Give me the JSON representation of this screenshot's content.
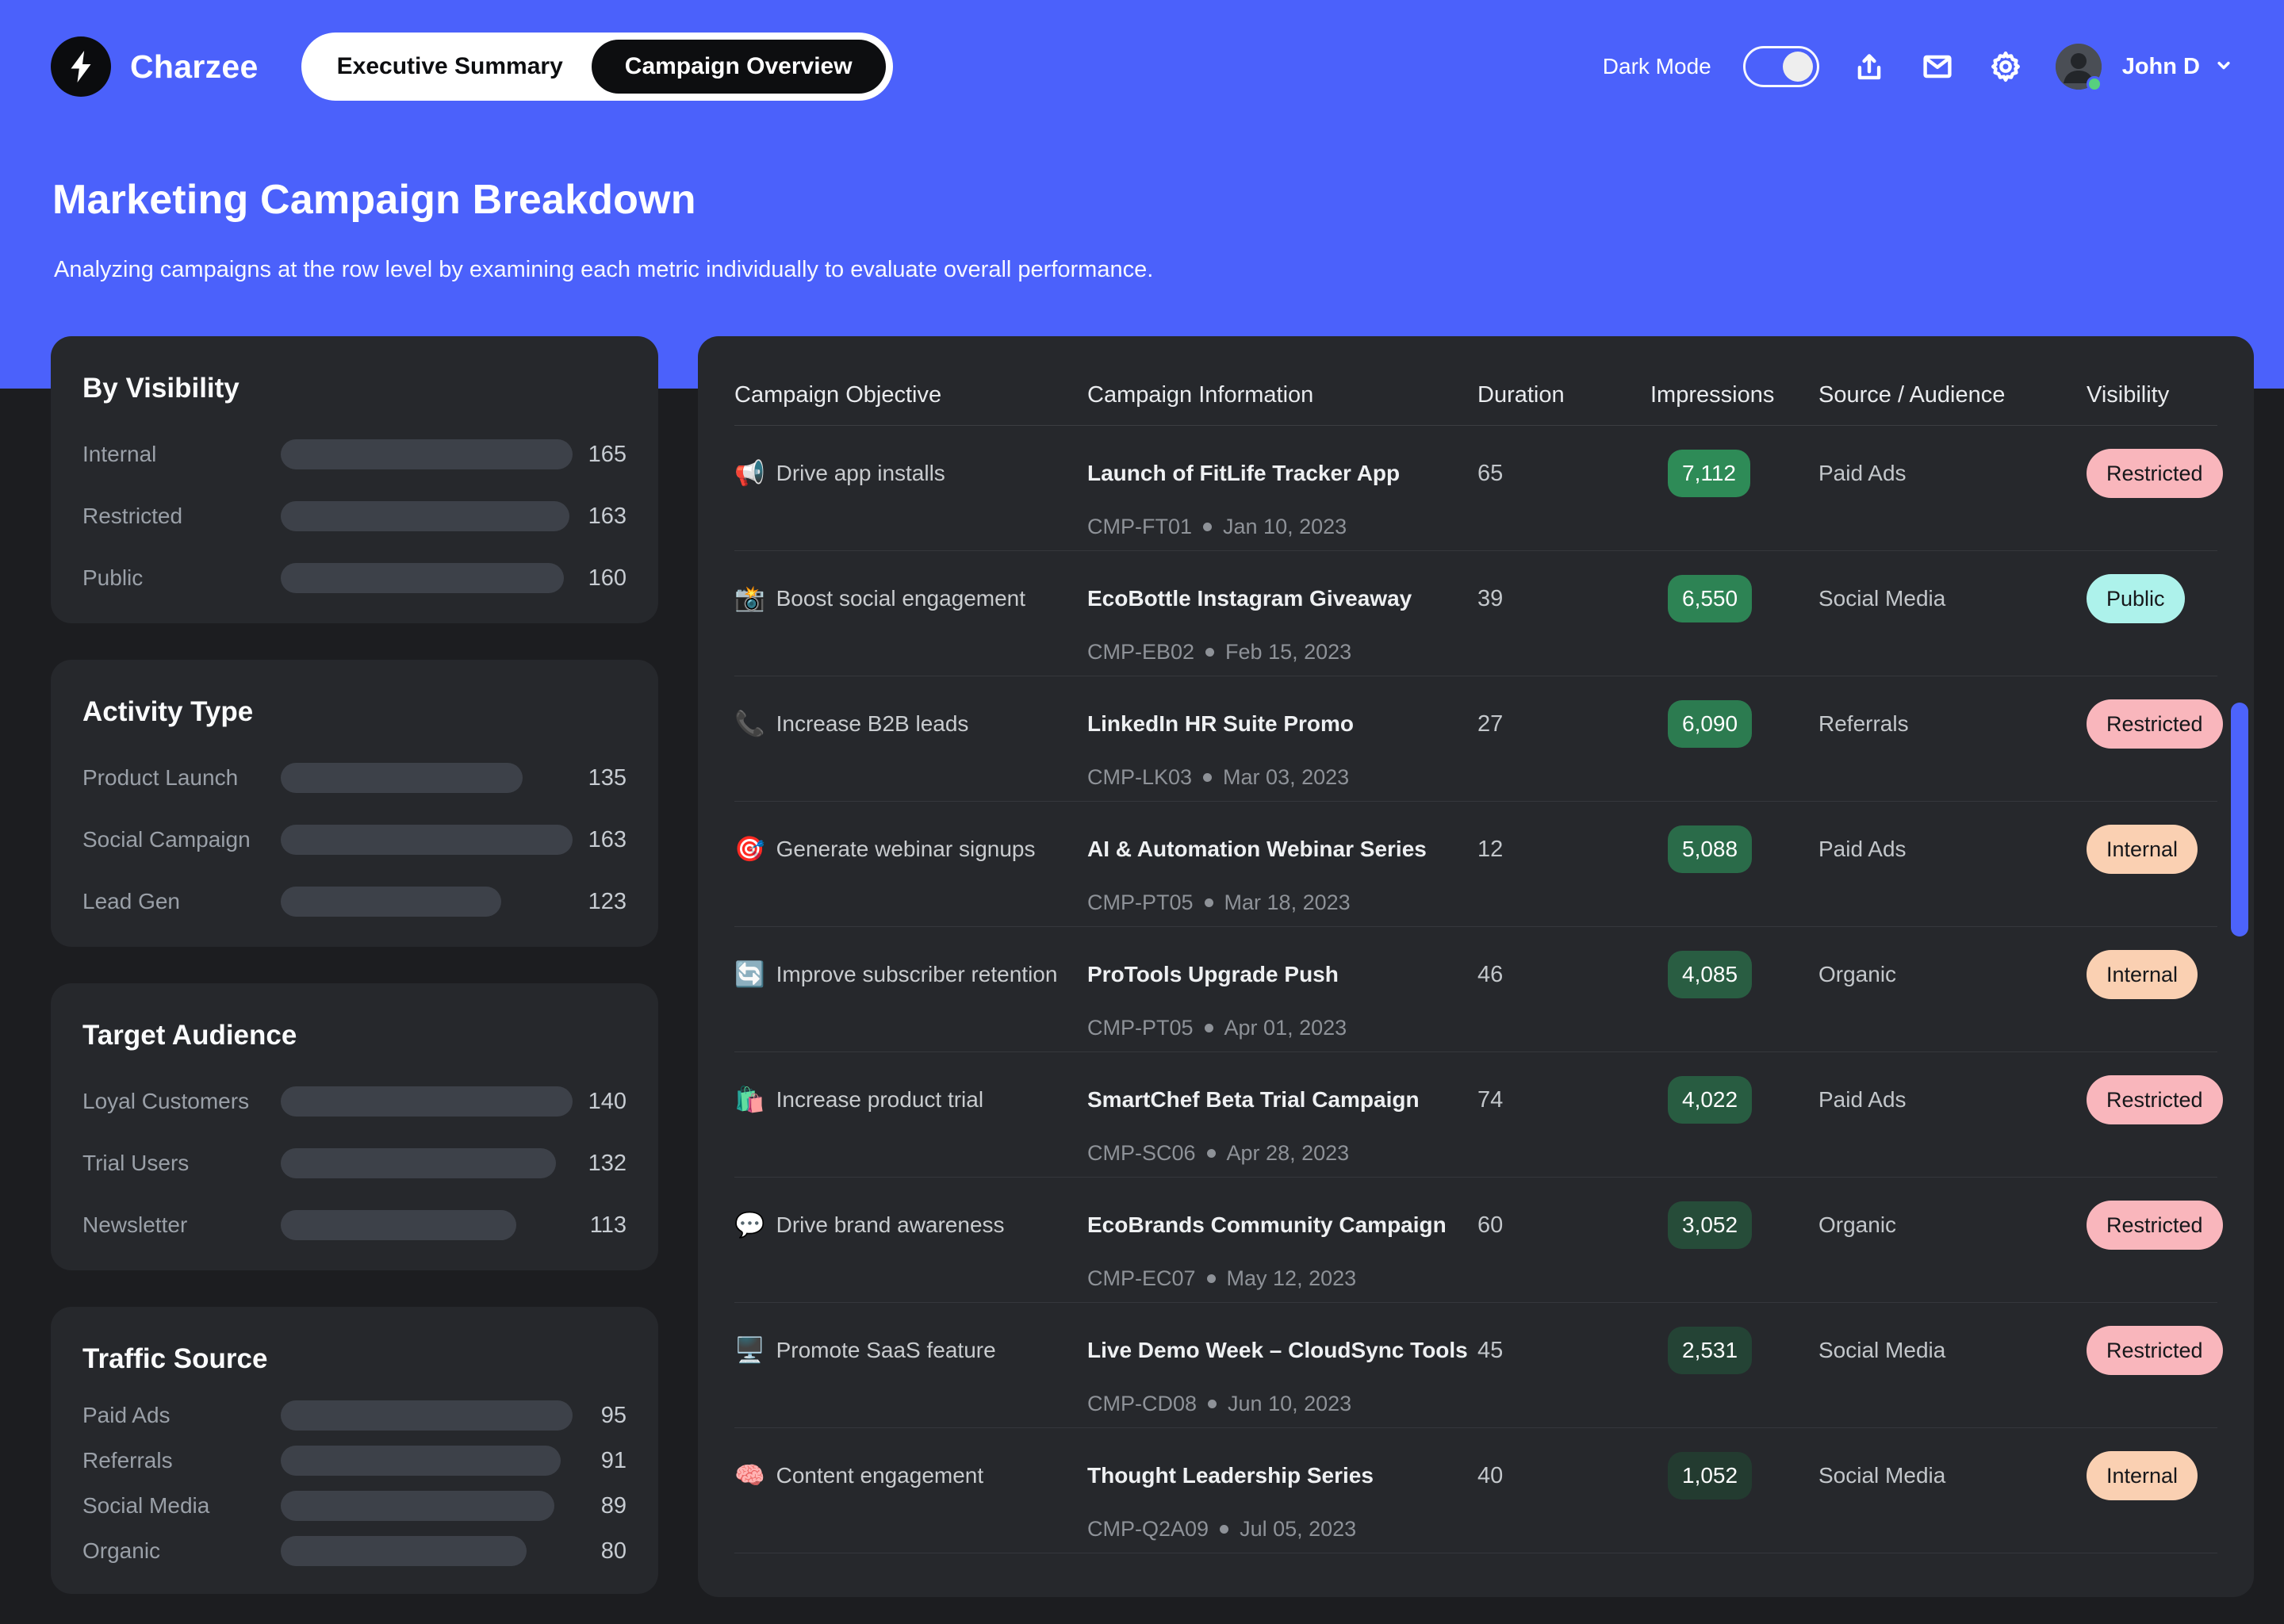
{
  "header": {
    "brand": "Charzee",
    "tabs": [
      {
        "label": "Executive Summary",
        "active": false
      },
      {
        "label": "Campaign Overview",
        "active": true
      }
    ],
    "dark_mode": {
      "label": "Dark Mode",
      "on": true
    },
    "user": {
      "name": "John D",
      "status": "online"
    }
  },
  "hero": {
    "title": "Marketing Campaign Breakdown",
    "subtitle": "Analyzing campaigns at the row level by examining each metric individually to evaluate overall performance."
  },
  "sidebar": {
    "panels": [
      {
        "title": "By Visibility",
        "items": [
          {
            "label": "Internal",
            "value": 165
          },
          {
            "label": "Restricted",
            "value": 163
          },
          {
            "label": "Public",
            "value": 160
          }
        ]
      },
      {
        "title": "Activity Type",
        "items": [
          {
            "label": "Product Launch",
            "value": 135
          },
          {
            "label": "Social Campaign",
            "value": 163
          },
          {
            "label": "Lead Gen",
            "value": 123
          }
        ]
      },
      {
        "title": "Target Audience",
        "items": [
          {
            "label": "Loyal Customers",
            "value": 140
          },
          {
            "label": "Trial Users",
            "value": 132
          },
          {
            "label": "Newsletter",
            "value": 113
          }
        ]
      },
      {
        "title": "Traffic Source",
        "items": [
          {
            "label": "Paid Ads",
            "value": 95
          },
          {
            "label": "Referrals",
            "value": 91
          },
          {
            "label": "Social Media",
            "value": 89
          },
          {
            "label": "Organic",
            "value": 80
          }
        ]
      }
    ]
  },
  "table": {
    "columns": [
      "Campaign Objective",
      "Campaign Information",
      "Duration",
      "Impressions",
      "Source / Audience",
      "Visibility"
    ],
    "rows": [
      {
        "emoji": "📢",
        "objective": "Drive app installs",
        "name": "Launch of FitLife Tracker App",
        "code": "CMP-FT01",
        "date": "Jan 10, 2023",
        "duration": "65",
        "impressions": "7,112",
        "impressions_color": "#2e8b57",
        "source": "Paid Ads",
        "visibility": "Restricted"
      },
      {
        "emoji": "📸",
        "objective": "Boost social engagement",
        "name": "EcoBottle Instagram Giveaway",
        "code": "CMP-EB02",
        "date": "Feb 15, 2023",
        "duration": "39",
        "impressions": "6,550",
        "impressions_color": "#2d8354",
        "source": "Social Media",
        "visibility": "Public"
      },
      {
        "emoji": "📞",
        "objective": "Increase B2B leads",
        "name": "LinkedIn HR Suite Promo",
        "code": "CMP-LK03",
        "date": "Mar 03, 2023",
        "duration": "27",
        "impressions": "6,090",
        "impressions_color": "#2c7b50",
        "source": "Referrals",
        "visibility": "Restricted"
      },
      {
        "emoji": "🎯",
        "objective": "Generate webinar signups",
        "name": "AI & Automation Webinar Series",
        "code": "CMP-PT05",
        "date": "Mar 18, 2023",
        "duration": "12",
        "impressions": "5,088",
        "impressions_color": "#2a6b49",
        "source": "Paid Ads",
        "visibility": "Internal"
      },
      {
        "emoji": "🔄",
        "objective": "Improve subscriber retention",
        "name": "ProTools Upgrade Push",
        "code": "CMP-PT05",
        "date": "Apr 01, 2023",
        "duration": "46",
        "impressions": "4,085",
        "impressions_color": "#295d42",
        "source": "Organic",
        "visibility": "Internal"
      },
      {
        "emoji": "🛍️",
        "objective": "Increase product trial",
        "name": "SmartChef Beta Trial Campaign",
        "code": "CMP-SC06",
        "date": "Apr 28, 2023",
        "duration": "74",
        "impressions": "4,022",
        "impressions_color": "#285c41",
        "source": "Paid Ads",
        "visibility": "Restricted"
      },
      {
        "emoji": "💬",
        "objective": "Drive brand awareness",
        "name": "EcoBrands Community Campaign",
        "code": "CMP-EC07",
        "date": "May 12, 2023",
        "duration": "60",
        "impressions": "3,052",
        "impressions_color": "#264c39",
        "source": "Organic",
        "visibility": "Restricted"
      },
      {
        "emoji": "🖥️",
        "objective": "Promote SaaS feature",
        "name": "Live Demo Week – CloudSync Tools",
        "code": "CMP-CD08",
        "date": "Jun 10, 2023",
        "duration": "45",
        "impressions": "2,531",
        "impressions_color": "#244335",
        "source": "Social Media",
        "visibility": "Restricted"
      },
      {
        "emoji": "🧠",
        "objective": "Content engagement",
        "name": "Thought Leadership Series",
        "code": "CMP-Q2A09",
        "date": "Jul 05, 2023",
        "duration": "40",
        "impressions": "1,052",
        "impressions_color": "#233b30",
        "source": "Social Media",
        "visibility": "Internal"
      }
    ],
    "visibility_styles": {
      "Restricted": {
        "bg": "#f9b6bc",
        "text": "#17181b"
      },
      "Public": {
        "bg": "#adf2eb",
        "text": "#17181b"
      },
      "Internal": {
        "bg": "#fad0b2",
        "text": "#17181b"
      }
    }
  },
  "colors": {
    "accent_blue": "#4b61fb",
    "page_bg": "#1c1d20",
    "card_bg": "#26282c",
    "bar_fill": "#3d4149",
    "divider": "#3b3d42",
    "scrollbar": "#4c63fb",
    "impression_text": "#ffffff",
    "online_dot": "#57d07e"
  }
}
